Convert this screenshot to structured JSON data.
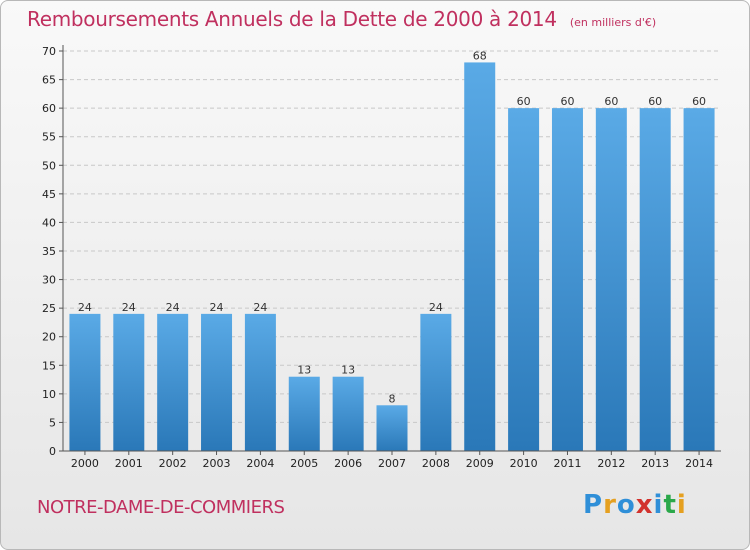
{
  "header": {
    "title": "Remboursements Annuels de la Dette de 2000 à 2014",
    "unit": "(en milliers d'€)"
  },
  "footer": {
    "commune": "NOTRE-DAME-DE-COMMIERS",
    "logo_text": "Proxiti"
  },
  "colors": {
    "title": "#c0305f",
    "bar_light": "#5aaae6",
    "bar_dark": "#2a78b8"
  },
  "chart_data": {
    "type": "bar",
    "categories": [
      "2000",
      "2001",
      "2002",
      "2003",
      "2004",
      "2005",
      "2006",
      "2007",
      "2008",
      "2009",
      "2010",
      "2011",
      "2012",
      "2013",
      "2014"
    ],
    "values": [
      24,
      24,
      24,
      24,
      24,
      13,
      13,
      8,
      24,
      68,
      60,
      60,
      60,
      60,
      60
    ],
    "title": "Remboursements Annuels de la Dette de 2000 à 2014",
    "unit": "(en milliers d'€)",
    "ylim": [
      0,
      70
    ],
    "yticks": [
      0,
      5,
      10,
      15,
      20,
      25,
      30,
      35,
      40,
      45,
      50,
      55,
      60,
      65,
      70
    ],
    "grid": true
  }
}
